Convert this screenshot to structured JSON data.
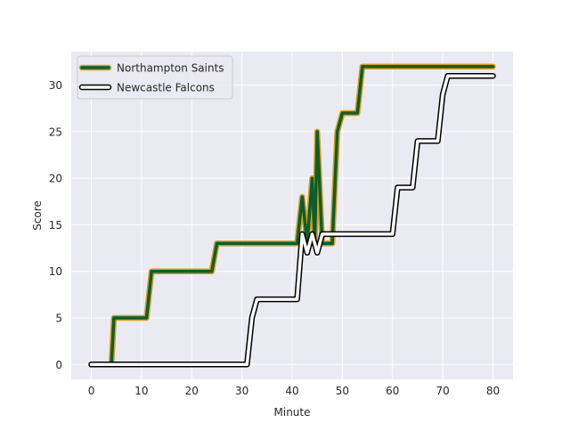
{
  "chart_data": {
    "type": "line",
    "title": "",
    "xlabel": "Minute",
    "ylabel": "Score",
    "xlim": [
      -4,
      84
    ],
    "ylim": [
      -1.6,
      33.6
    ],
    "xticks": [
      0,
      10,
      20,
      30,
      40,
      50,
      60,
      70,
      80
    ],
    "yticks": [
      0,
      5,
      10,
      15,
      20,
      25,
      30
    ],
    "grid": true,
    "legend_position": "top-left",
    "style": {
      "background": "#eaeaf2",
      "grid_color": "#ffffff"
    },
    "series": [
      {
        "name": "Northampton Saints",
        "color": "#0b5e2d",
        "edge_color": "#d89c1a",
        "points": [
          [
            0,
            0
          ],
          [
            4,
            0
          ],
          [
            4.5,
            5
          ],
          [
            11,
            5
          ],
          [
            12,
            10
          ],
          [
            24,
            10
          ],
          [
            25,
            13
          ],
          [
            41,
            13
          ],
          [
            42,
            18
          ],
          [
            43,
            13
          ],
          [
            44,
            20
          ],
          [
            44.5,
            13
          ],
          [
            45,
            25
          ],
          [
            46,
            13
          ],
          [
            48,
            13
          ],
          [
            49,
            25
          ],
          [
            50,
            27
          ],
          [
            53,
            27
          ],
          [
            54,
            32
          ],
          [
            80,
            32
          ]
        ]
      },
      {
        "name": "Newcastle Falcons",
        "color": "#ffffff",
        "edge_color": "#000000",
        "points": [
          [
            0,
            0
          ],
          [
            31,
            0
          ],
          [
            32,
            5
          ],
          [
            33,
            7
          ],
          [
            41,
            7
          ],
          [
            42,
            14
          ],
          [
            43,
            12
          ],
          [
            44,
            14
          ],
          [
            45,
            12
          ],
          [
            46,
            14
          ],
          [
            60,
            14
          ],
          [
            61,
            19
          ],
          [
            64,
            19
          ],
          [
            65,
            24
          ],
          [
            69,
            24
          ],
          [
            70,
            29
          ],
          [
            71,
            31
          ],
          [
            80,
            31
          ]
        ]
      }
    ]
  }
}
